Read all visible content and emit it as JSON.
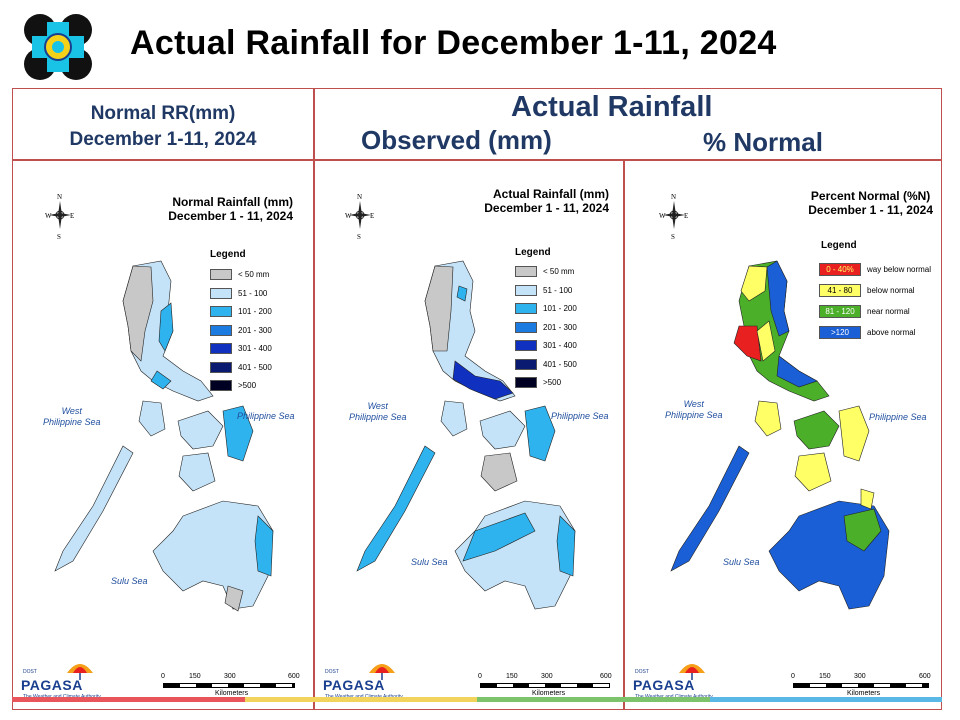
{
  "title": "Actual Rainfall for December 1-11, 2024",
  "header": {
    "normal_line1": "Normal RR(mm)",
    "normal_line2": "December 1-11, 2024",
    "actual_title": "Actual Rainfall",
    "observed_label": "Observed (mm)",
    "percent_label": "% Normal"
  },
  "maps": {
    "normal": {
      "title1": "Normal Rainfall (mm)",
      "title2": "December 1 - 11, 2024"
    },
    "actual": {
      "title1": "Actual Rainfall (mm)",
      "title2": "December 1 - 11, 2024"
    },
    "percent": {
      "title1": "Percent Normal (%N)",
      "title2": "December 1 - 11, 2024"
    }
  },
  "legend_title": "Legend",
  "rain_legend": [
    {
      "label": "< 50 mm",
      "color": "#c8c8c8"
    },
    {
      "label": "51 - 100",
      "color": "#c5e3f8"
    },
    {
      "label": "101 - 200",
      "color": "#2fb3ee"
    },
    {
      "label": "201 - 300",
      "color": "#1c7be0"
    },
    {
      "label": "301 - 400",
      "color": "#1030c0"
    },
    {
      "label": "401 - 500",
      "color": "#0a1a70"
    },
    {
      "label": ">500",
      "color": "#000022"
    }
  ],
  "pct_legend": [
    {
      "code": "0 - 40%",
      "label": "way below normal",
      "color": "#e82020"
    },
    {
      "code": "41 - 80",
      "label": "below normal",
      "color": "#ffff66"
    },
    {
      "code": "81 - 120",
      "label": "near normal",
      "color": "#4caf2a"
    },
    {
      "code": ">120",
      "label": "above normal",
      "color": "#1a5fd6"
    }
  ],
  "seas": {
    "west1": "West",
    "west2": "Philippine Sea",
    "east": "Philippine Sea",
    "sulu": "Sulu Sea"
  },
  "compass": {
    "n": "N",
    "s": "S",
    "e": "E",
    "w": "W"
  },
  "scale": {
    "ticks": [
      "0",
      "150",
      "300",
      "600"
    ],
    "unit": "Kilometers"
  },
  "logo": {
    "name": "PAGASA",
    "dost": "DOST",
    "tagline": "The Weather and Climate Authority"
  }
}
